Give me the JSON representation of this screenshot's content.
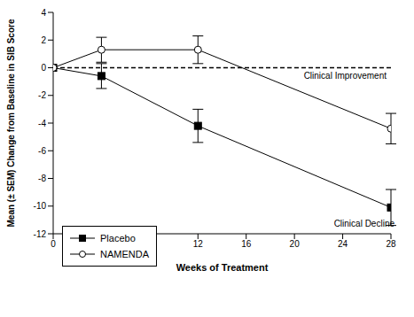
{
  "chart_data": {
    "type": "line",
    "x_label": "Weeks of Treatment",
    "y_label": "Mean (± SEM) Change from Baseline in SIB Score",
    "x": [
      0,
      4,
      12,
      28
    ],
    "series": [
      {
        "name": "Placebo",
        "color": "#000000",
        "marker": "square",
        "values": [
          0,
          -0.6,
          -4.2,
          -10.1
        ],
        "errors": [
          0,
          0.9,
          1.2,
          1.3
        ]
      },
      {
        "name": "NAMENDA",
        "color": "#000000",
        "marker": "circle",
        "values": [
          0,
          1.3,
          1.3,
          -4.4
        ],
        "errors": [
          0,
          0.9,
          1.0,
          1.1
        ]
      }
    ],
    "xlim": [
      0,
      28
    ],
    "xticks": [
      0,
      4,
      8,
      12,
      16,
      20,
      24,
      28
    ],
    "ylim": [
      -12,
      4
    ],
    "yticks": [
      -12,
      -10,
      -8,
      -6,
      -4,
      -2,
      0,
      2,
      4
    ],
    "grid": false,
    "legend": "lower left",
    "reference_lines": [
      {
        "y": 0,
        "label": "Clinical Improvement",
        "line_style": "dashed"
      }
    ],
    "annotations": [
      {
        "text": "Clinical Decline",
        "x": 28,
        "y": -12
      }
    ]
  }
}
